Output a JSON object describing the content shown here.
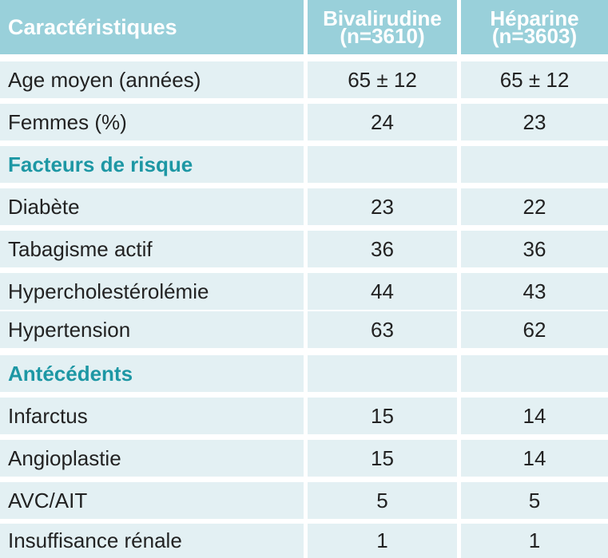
{
  "header": {
    "col0": "Caractéristiques",
    "col1_name": "Bivalirudine",
    "col1_n": "(n=3610)",
    "col2_name": "Héparine",
    "col2_n": "(n=3603)"
  },
  "rows": [
    {
      "label": "Age moyen (années)",
      "biv": "65 ± 12",
      "hep": "65 ± 12"
    },
    {
      "label": "Femmes (%)",
      "biv": "24",
      "hep": "23"
    },
    {
      "section": "Facteurs de risque"
    },
    {
      "label": "Diabète",
      "biv": "23",
      "hep": "22"
    },
    {
      "label": "Tabagisme actif",
      "biv": "36",
      "hep": "36"
    },
    {
      "label": "Hypercholestérolémie",
      "biv": "44",
      "hep": "43"
    },
    {
      "label": "Hypertension",
      "biv": "63",
      "hep": "62"
    },
    {
      "section": "Antécédents"
    },
    {
      "label": "Infarctus",
      "biv": "15",
      "hep": "14"
    },
    {
      "label": "Angioplastie",
      "biv": "15",
      "hep": "14"
    },
    {
      "label": "AVC/AIT",
      "biv": "5",
      "hep": "5"
    },
    {
      "label": "Insuffisance rénale",
      "biv": "1",
      "hep": "1"
    }
  ],
  "colors": {
    "header_bg": "#99d0da",
    "row_bg": "#e3f0f3",
    "section_text": "#1d97a4"
  }
}
